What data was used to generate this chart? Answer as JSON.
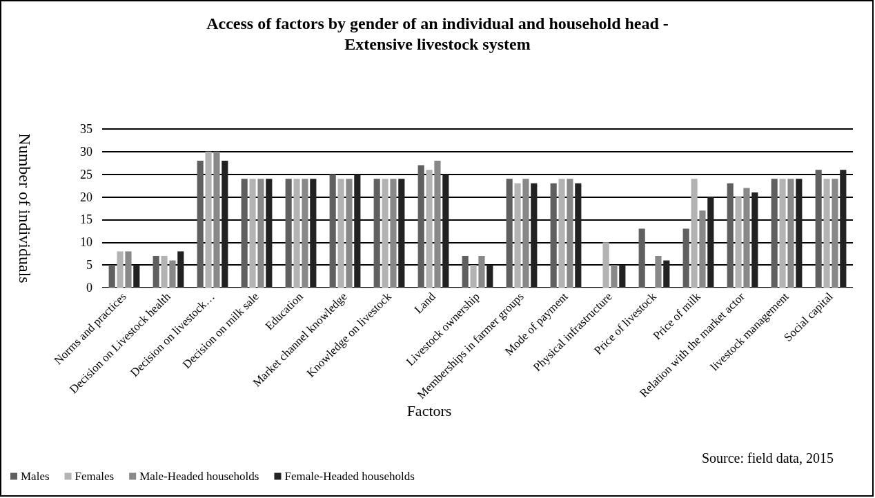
{
  "chart_data": {
    "type": "bar",
    "title": "Access of factors by gender of an individual and household head -\nExtensive livestock system",
    "xlabel": "Factors",
    "ylabel": "Number of individuals",
    "annotations": [
      "Source: field data, 2015"
    ],
    "categories": [
      "Norms and practices",
      "Decision on Livestock health",
      "Decision on livestock…",
      "Decision on milk sale",
      "Education",
      "Market channel knowledge",
      "Knowledge on livestock",
      "Land",
      "Livestock ownership",
      "Memberships in farmer groups",
      "Mode of payment",
      "Physical infrastructure",
      "Price of livestock",
      "Price of milk",
      "Relation with the market actor",
      "livestock management",
      "Social capital"
    ],
    "series": [
      {
        "name": "Males",
        "color": "#606060",
        "values": [
          5,
          7,
          28,
          24,
          24,
          25,
          24,
          27,
          7,
          24,
          23,
          0,
          13,
          13,
          23,
          24,
          26
        ]
      },
      {
        "name": "Females",
        "color": "#b3b3b3",
        "values": [
          8,
          7,
          30,
          24,
          24,
          24,
          24,
          26,
          5,
          23,
          24,
          10,
          0,
          24,
          20,
          24,
          24
        ]
      },
      {
        "name": "Male-Headed households",
        "color": "#888888",
        "values": [
          8,
          6,
          30,
          24,
          24,
          24,
          24,
          28,
          7,
          24,
          24,
          5,
          7,
          17,
          22,
          24,
          24
        ]
      },
      {
        "name": "Female-Headed households",
        "color": "#222222",
        "values": [
          5,
          8,
          28,
          24,
          24,
          25,
          24,
          25,
          5,
          23,
          23,
          5,
          6,
          20,
          21,
          24,
          26
        ]
      }
    ],
    "ylim": [
      0,
      35
    ],
    "yticks": [
      0,
      5,
      10,
      15,
      20,
      25,
      30,
      35
    ],
    "grid": "y",
    "legend": "bottom left"
  }
}
